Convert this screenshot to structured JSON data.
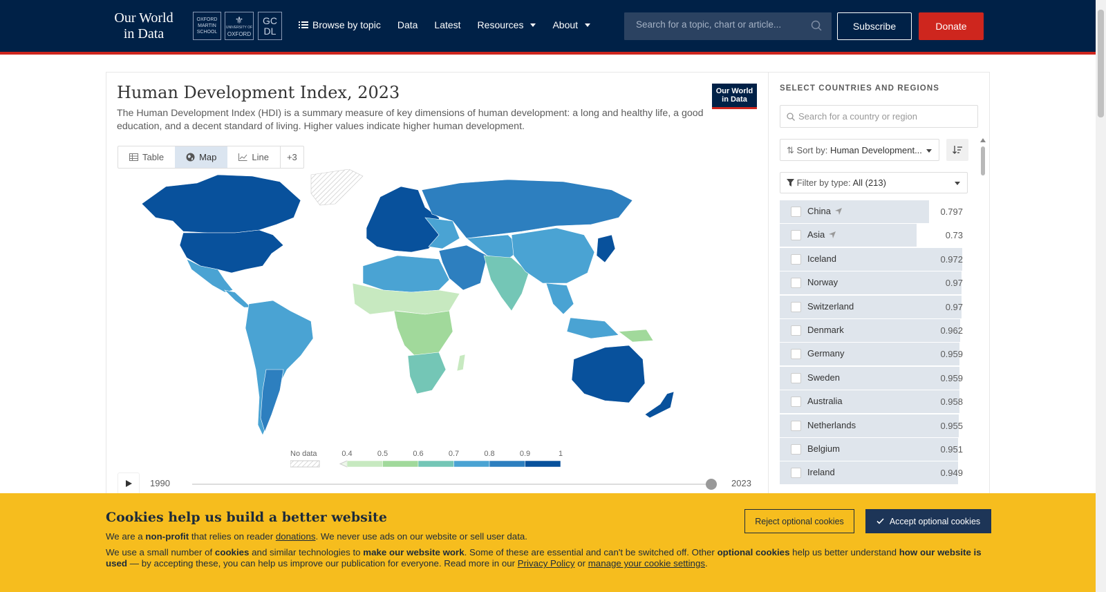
{
  "header": {
    "logo_line1": "Our World",
    "logo_line2": "in Data",
    "inst1": [
      "OXFORD",
      "MARTIN",
      "SCHOOL"
    ],
    "inst2": [
      "UNIVERSITY OF",
      "OXFORD"
    ],
    "inst3": [
      "GC",
      "DL"
    ],
    "nav": [
      {
        "label": "Browse by topic"
      },
      {
        "label": "Data"
      },
      {
        "label": "Latest"
      },
      {
        "label": "Resources"
      },
      {
        "label": "About"
      }
    ],
    "search_placeholder": "Search for a topic, chart or article...",
    "subscribe": "Subscribe",
    "donate": "Donate"
  },
  "chart": {
    "title": "Human Development Index, 2023",
    "subtitle": "The Human Development Index (HDI) is a summary measure of key dimensions of human development: a long and healthy life, a good education, and a decent standard of living. Higher values indicate higher human development.",
    "badge_line1": "Our World",
    "badge_line2": "in Data",
    "tabs": [
      {
        "label": "Table"
      },
      {
        "label": "Map",
        "active": true
      },
      {
        "label": "Line"
      },
      {
        "label": "+3"
      }
    ],
    "legend": {
      "no_data": "No data",
      "ticks": [
        "0.4",
        "0.5",
        "0.6",
        "0.7",
        "0.8",
        "0.9",
        "1"
      ],
      "colors": [
        "#edf8e9",
        "#c7e9c0",
        "#a1d99b",
        "#74c6b6",
        "#4aa3d3",
        "#2d7fbf",
        "#08519c"
      ]
    },
    "timeline": {
      "start": "1990",
      "end": "2023"
    }
  },
  "sidebar": {
    "heading": "SELECT COUNTRIES AND REGIONS",
    "search_placeholder": "Search for a country or region",
    "sort_label": "Sort by:",
    "sort_value": "Human Development...",
    "filter_label": "Filter by type:",
    "filter_value": "All (213)",
    "items": [
      {
        "name": "China",
        "value": "0.797",
        "loc": true
      },
      {
        "name": "Asia",
        "value": "0.73",
        "loc": true
      },
      {
        "name": "Iceland",
        "value": "0.972"
      },
      {
        "name": "Norway",
        "value": "0.97"
      },
      {
        "name": "Switzerland",
        "value": "0.97"
      },
      {
        "name": "Denmark",
        "value": "0.962"
      },
      {
        "name": "Germany",
        "value": "0.959"
      },
      {
        "name": "Sweden",
        "value": "0.959"
      },
      {
        "name": "Australia",
        "value": "0.958"
      },
      {
        "name": "Netherlands",
        "value": "0.955"
      },
      {
        "name": "Belgium",
        "value": "0.951"
      },
      {
        "name": "Ireland",
        "value": "0.949"
      }
    ]
  },
  "cookie": {
    "title": "Cookies help us build a better website",
    "p1_a": "We are a ",
    "p1_b": "non-profit",
    "p1_c": " that relies on reader ",
    "p1_d": "donations",
    "p1_e": ". We never use ads on our website or sell user data.",
    "p2_a": "We use a small number of ",
    "p2_b": "cookies",
    "p2_c": " and similar technologies to ",
    "p2_d": "make our website work",
    "p2_e": ". Some of these are essential and can't be switched off. Other ",
    "p2_f": "optional cookies",
    "p2_g": " help us better understand ",
    "p2_h": "how our website is used",
    "p2_i": " — by accepting these, you can help us improve our publication for everyone. Read more in our ",
    "p2_j": "Privacy Policy",
    "p2_k": " or ",
    "p2_l": "manage your cookie settings",
    "p2_m": ".",
    "reject": "Reject optional cookies",
    "accept": "Accept optional cookies"
  }
}
